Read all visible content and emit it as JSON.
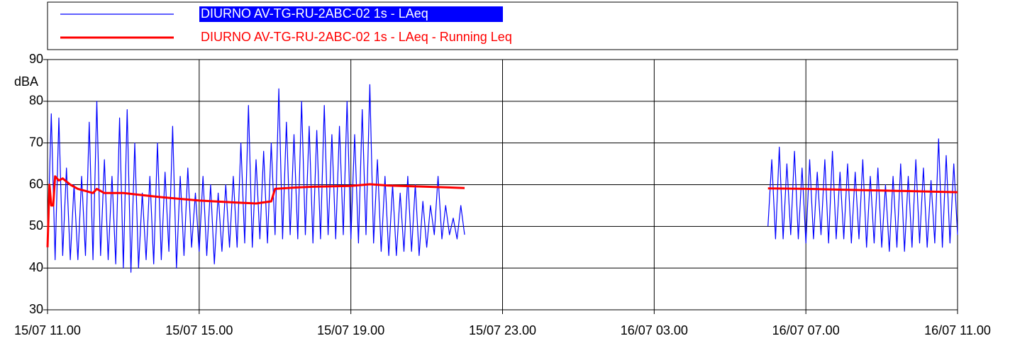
{
  "chart_data": {
    "type": "line",
    "y_label": "dBA",
    "ylim": [
      30,
      90
    ],
    "yticks": [
      30,
      40,
      50,
      60,
      70,
      80,
      90
    ],
    "xlim": [
      11,
      35
    ],
    "xticks": [
      {
        "value": 11,
        "label": "15/07 11.00"
      },
      {
        "value": 15,
        "label": "15/07 15.00"
      },
      {
        "value": 19,
        "label": "15/07 19.00"
      },
      {
        "value": 23,
        "label": "15/07 23.00"
      },
      {
        "value": 27,
        "label": "16/07 03.00"
      },
      {
        "value": 31,
        "label": "16/07 07.00"
      },
      {
        "value": 35,
        "label": "16/07 11.00"
      }
    ],
    "grid": true,
    "legend": "top",
    "series": [
      {
        "name": "DIURNO AV-TG-RU-2ABC-02 1s - LAeq",
        "color": "#0000ff",
        "x": [
          11.0,
          11.1,
          11.2,
          11.3,
          11.4,
          11.5,
          11.6,
          11.7,
          11.8,
          11.9,
          12.0,
          12.1,
          12.2,
          12.3,
          12.4,
          12.5,
          12.6,
          12.7,
          12.8,
          12.9,
          13.0,
          13.1,
          13.2,
          13.3,
          13.4,
          13.5,
          13.6,
          13.7,
          13.8,
          13.9,
          14.0,
          14.1,
          14.2,
          14.3,
          14.4,
          14.5,
          14.6,
          14.7,
          14.8,
          14.9,
          15.0,
          15.1,
          15.2,
          15.3,
          15.4,
          15.5,
          15.6,
          15.7,
          15.8,
          15.9,
          16.0,
          16.1,
          16.2,
          16.3,
          16.4,
          16.5,
          16.6,
          16.7,
          16.8,
          16.9,
          17.0,
          17.1,
          17.2,
          17.3,
          17.4,
          17.5,
          17.6,
          17.7,
          17.8,
          17.9,
          18.0,
          18.1,
          18.2,
          18.3,
          18.4,
          18.5,
          18.6,
          18.7,
          18.8,
          18.9,
          19.0,
          19.1,
          19.2,
          19.3,
          19.4,
          19.5,
          19.6,
          19.7,
          19.8,
          19.9,
          20.0,
          20.1,
          20.2,
          20.3,
          20.4,
          20.5,
          20.6,
          20.7,
          20.8,
          20.9,
          21.0,
          21.1,
          21.2,
          21.3,
          21.4,
          21.5,
          21.6,
          21.7,
          21.8,
          21.9,
          22.0,
          26.0,
          30.0,
          30.1,
          30.2,
          30.3,
          30.4,
          30.5,
          30.6,
          30.7,
          30.8,
          30.9,
          31.0,
          31.1,
          31.2,
          31.3,
          31.4,
          31.5,
          31.6,
          31.7,
          31.8,
          31.9,
          32.0,
          32.1,
          32.2,
          32.3,
          32.4,
          32.5,
          32.6,
          32.7,
          32.8,
          32.9,
          33.0,
          33.1,
          33.2,
          33.3,
          33.4,
          33.5,
          33.6,
          33.7,
          33.8,
          33.9,
          34.0,
          34.1,
          34.2,
          34.3,
          34.4,
          34.5,
          34.6,
          34.7,
          34.8,
          34.9,
          35.0
        ],
        "values": [
          45,
          77,
          42,
          76,
          43,
          64,
          42,
          60,
          42,
          62,
          43,
          75,
          42,
          80,
          43,
          66,
          42,
          62,
          41,
          76,
          40,
          78,
          39,
          70,
          40,
          58,
          42,
          62,
          41,
          70,
          42,
          63,
          44,
          74,
          40,
          62,
          43,
          64,
          45,
          58,
          44,
          62,
          43,
          60,
          41,
          58,
          44,
          60,
          45,
          62,
          45,
          70,
          46,
          79,
          45,
          66,
          47,
          68,
          46,
          70,
          48,
          83,
          47,
          75,
          48,
          72,
          47,
          80,
          48,
          74,
          46,
          73,
          47,
          79,
          48,
          72,
          47,
          74,
          48,
          80,
          47,
          72,
          46,
          78,
          48,
          84,
          46,
          66,
          44,
          62,
          43,
          60,
          43,
          58,
          44,
          62,
          44,
          60,
          43,
          56,
          45,
          55,
          48,
          62,
          47,
          55,
          48,
          52,
          47,
          55,
          48,
          null,
          50,
          66,
          47,
          69,
          47,
          65,
          48,
          68,
          47,
          64,
          46,
          66,
          47,
          63,
          48,
          66,
          46,
          68,
          47,
          63,
          47,
          65,
          46,
          63,
          47,
          66,
          45,
          62,
          46,
          64,
          45,
          60,
          44,
          62,
          45,
          65,
          44,
          62,
          45,
          66,
          46,
          64,
          45,
          61,
          46,
          71,
          45,
          67,
          46,
          65,
          48
        ]
      },
      {
        "name": "DIURNO AV-TG-RU-2ABC-02 1s - LAeq - Running Leq",
        "color": "#ff0000",
        "x": [
          11.0,
          11.05,
          11.1,
          11.15,
          11.2,
          11.3,
          11.4,
          11.6,
          11.8,
          12.0,
          12.2,
          12.3,
          12.5,
          13.0,
          13.5,
          14.0,
          15.0,
          16.0,
          16.5,
          16.9,
          17.0,
          17.5,
          18.0,
          19.0,
          19.5,
          20.0,
          21.0,
          22.0,
          26.0,
          30.0,
          31.0,
          32.0,
          33.0,
          34.0,
          35.0
        ],
        "values": [
          45,
          60,
          55,
          55,
          62,
          61,
          61.5,
          60,
          59,
          58.5,
          58,
          59,
          58,
          58,
          57.5,
          57,
          56.2,
          55.7,
          55.5,
          56,
          59,
          59.3,
          59.5,
          59.7,
          60.1,
          59.8,
          59.5,
          59.2,
          null,
          59.1,
          59,
          58.8,
          58.6,
          58.4,
          58.2
        ]
      }
    ]
  }
}
